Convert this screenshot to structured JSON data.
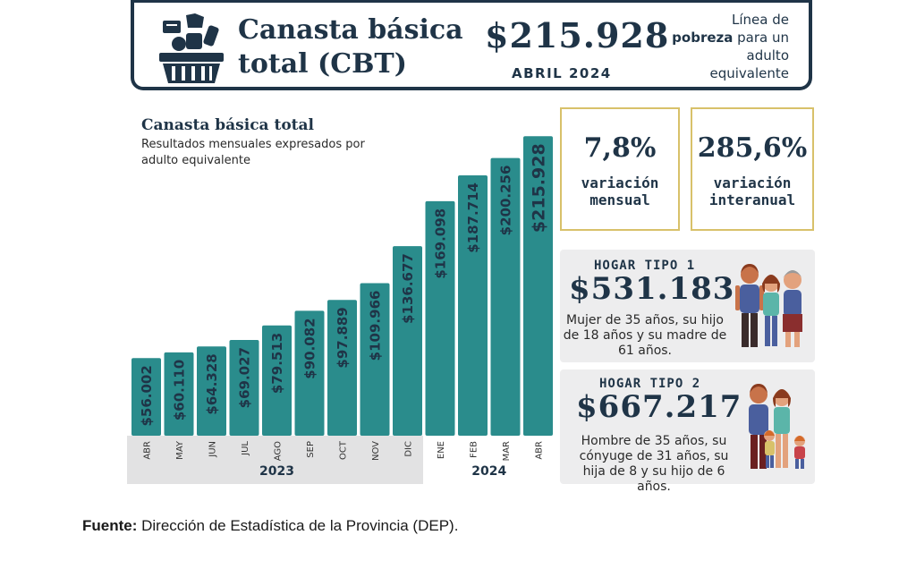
{
  "header": {
    "title": "Canasta básica\ntotal (CBT)",
    "amount": "$215.928",
    "date": "ABRIL 2024",
    "desc_line1": "Línea de",
    "desc_bold": "pobreza",
    "desc_rest": " para un adulto equivalente"
  },
  "chart_title": "Canasta básica total",
  "chart_subtitle": "Resultados mensuales expresados por adulto equivalente",
  "chart_data": {
    "type": "bar",
    "title": "Canasta básica total",
    "subtitle": "Resultados mensuales expresados por adulto equivalente",
    "categories": [
      "ABR",
      "MAY",
      "JUN",
      "JUL",
      "AGO",
      "SEP",
      "OCT",
      "NOV",
      "DIC",
      "ENE",
      "FEB",
      "MAR",
      "ABR"
    ],
    "values": [
      56002,
      60110,
      64328,
      69027,
      79513,
      90082,
      97889,
      109966,
      136677,
      169098,
      187714,
      200256,
      215928
    ],
    "labels": [
      "$56.002",
      "$60.110",
      "$64.328",
      "$69.027",
      "$79.513",
      "$90.082",
      "$97.889",
      "$109.966",
      "$136.677",
      "$169.098",
      "$187.714",
      "$200.256",
      "$215.928"
    ],
    "years": [
      {
        "label": "2023",
        "start": 0,
        "end": 8
      },
      {
        "label": "2024",
        "start": 9,
        "end": 12
      }
    ],
    "colors": {
      "bar": "#2a8c8c",
      "year_band": "#e2e2e3",
      "label": "#1f3447"
    }
  },
  "cards": {
    "mensual": {
      "pct": "7,8%",
      "label": "variación\nmensual"
    },
    "interanual": {
      "pct": "285,6%",
      "label": "variación\ninteranual"
    }
  },
  "hogar1": {
    "title": "HOGAR TIPO 1",
    "amount": "$531.183",
    "desc": "Mujer de 35 años, su hijo de 18 años y su madre de 61 años."
  },
  "hogar2": {
    "title": "HOGAR TIPO 2",
    "amount": "$667.217",
    "desc": "Hombre de 35 años, su cónyuge de 31 años, su hija de 8 y su hijo de 6 años."
  },
  "source": {
    "label": "Fuente:",
    "text": " Dirección de Estadística de la Provincia (DEP)."
  },
  "icons": [
    "shopping-basket-icon",
    "family-type1-icon",
    "family-type2-icon"
  ]
}
